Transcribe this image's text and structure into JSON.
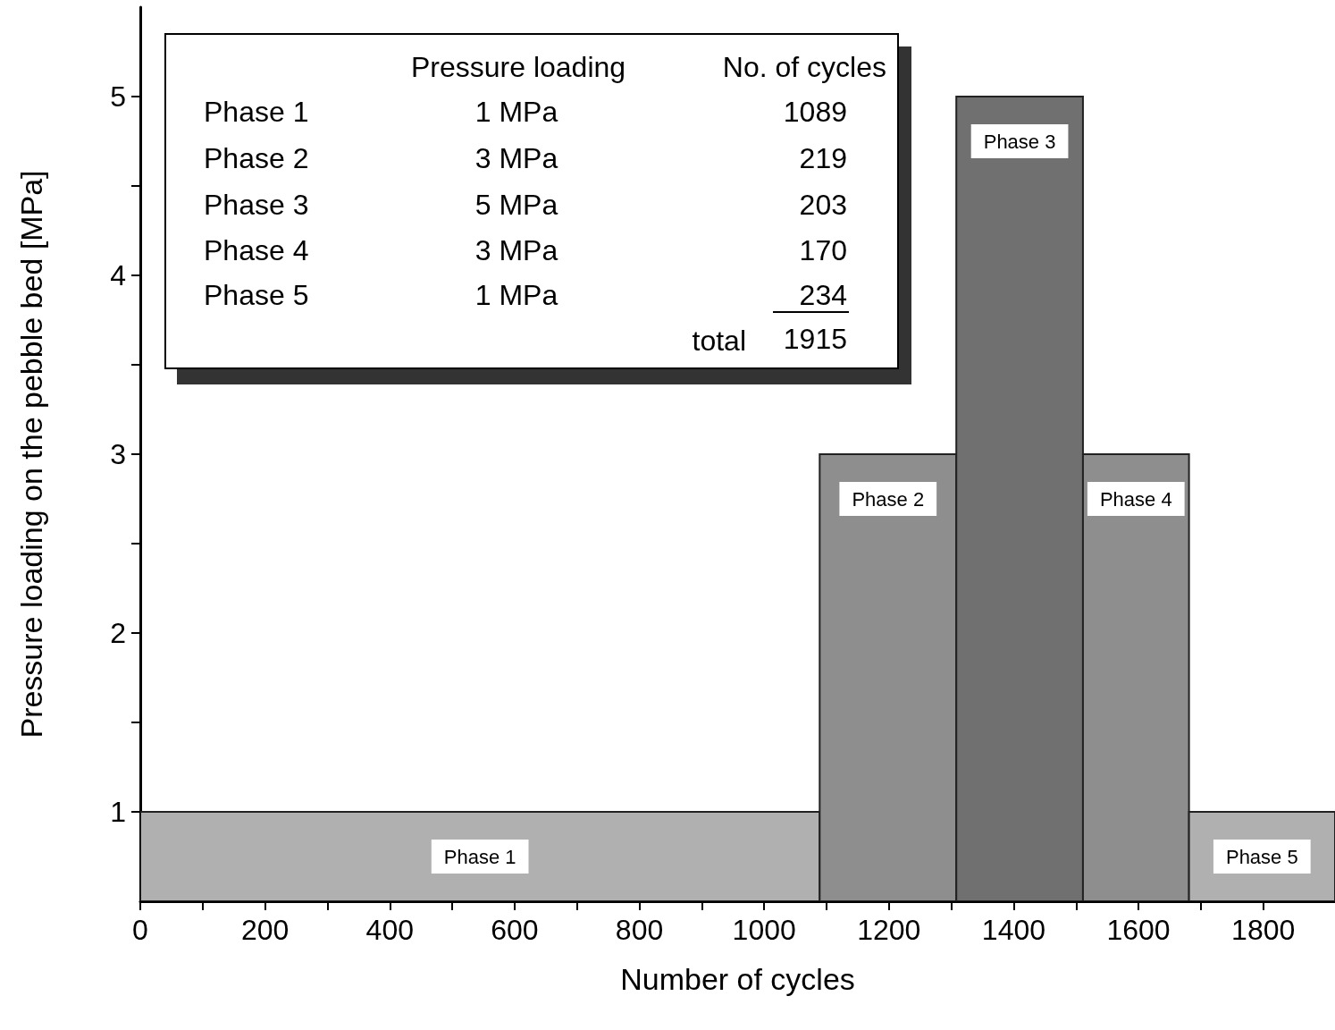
{
  "chart_data": {
    "type": "histogram",
    "xlabel": "Number of cycles",
    "ylabel": "Pressure loading on the pebble bed [MPa]",
    "bins": [
      0,
      1089,
      1308,
      1511,
      1681,
      1915
    ],
    "values": [
      1,
      3,
      5,
      3,
      1
    ],
    "value_labels": [
      "Phase 1",
      "Phase 2",
      "Phase 3",
      "Phase 4",
      "Phase 5"
    ],
    "colors": [
      "#b0b0b0",
      "#8e8e8e",
      "#707070",
      "#8e8e8e",
      "#b0b0b0"
    ],
    "xlim": [
      0,
      1915
    ],
    "xticks": [
      0,
      {
        "value": 100,
        "label": null
      },
      200,
      {
        "value": 300,
        "label": null
      },
      400,
      {
        "value": 500,
        "label": null
      },
      600,
      {
        "value": 700,
        "label": null
      },
      800,
      {
        "value": 900,
        "label": null
      },
      1000,
      {
        "value": 1100,
        "label": null
      },
      1200,
      {
        "value": 1300,
        "label": null
      },
      1400,
      {
        "value": 1500,
        "label": null
      },
      1600,
      {
        "value": 1700,
        "label": null
      },
      1800
    ],
    "ylim": [
      0.5,
      5.5
    ],
    "yticks": [
      1,
      {
        "value": 1.5,
        "label": null
      },
      2,
      {
        "value": 2.5,
        "label": null
      },
      3,
      {
        "value": 3.5,
        "label": null
      },
      4,
      {
        "value": 4.5,
        "label": null
      },
      5
    ],
    "grid": false,
    "annotations": [
      "Pressure loading",
      "No. of cycles",
      "Phase 1",
      "1 MPa",
      "1089",
      "Phase 2",
      "3 MPa",
      "219",
      "Phase 3",
      "5 MPa",
      "203",
      "Phase 4",
      "3 MPa",
      "170",
      "Phase 5",
      "1 MPa",
      "234",
      "total",
      "1915"
    ]
  }
}
